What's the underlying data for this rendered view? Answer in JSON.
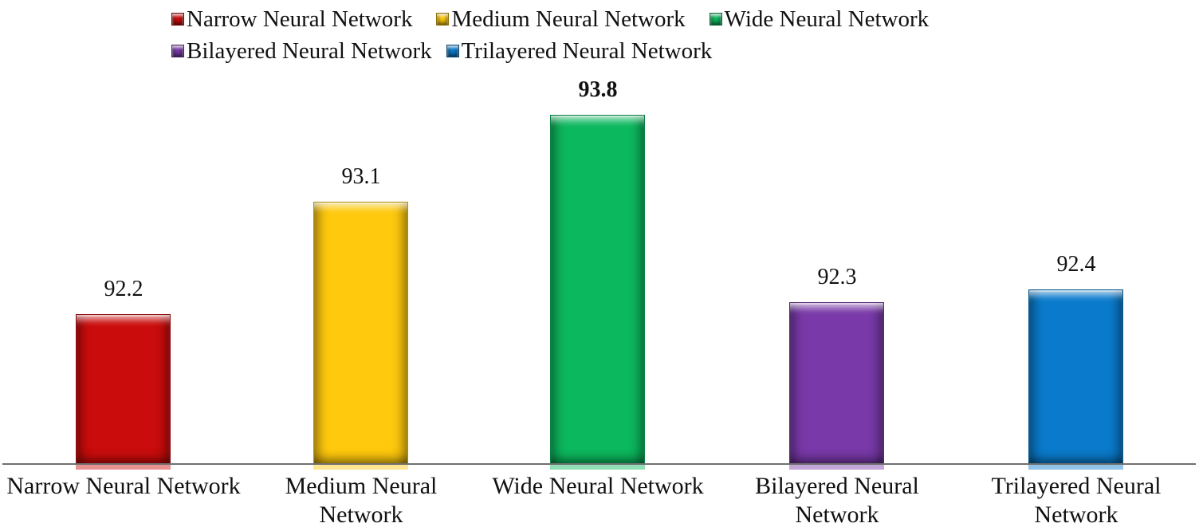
{
  "chart_data": {
    "type": "bar",
    "title": "",
    "xlabel": "",
    "ylabel": "",
    "categories": [
      "Narrow Neural Network",
      "Medium Neural Network",
      "Wide Neural Network",
      "Bilayered Neural Network",
      "Trilayered Neural Network"
    ],
    "category_lines": [
      [
        "Narrow Neural Network",
        ""
      ],
      [
        "Medium Neural",
        "Network"
      ],
      [
        "Wide Neural Network",
        ""
      ],
      [
        "Bilayered Neural",
        "Network"
      ],
      [
        "Trilayered Neural",
        "Network"
      ]
    ],
    "values": [
      92.2,
      93.1,
      93.8,
      92.3,
      92.4
    ],
    "data_labels": [
      "92.2",
      "93.1",
      "93.8",
      "92.3",
      "92.4"
    ],
    "emphasized_label_index": 2,
    "colors": [
      "#cb0c0c",
      "#ffc90d",
      "#0cb85e",
      "#7939a9",
      "#0a7bcc"
    ],
    "ylim": [
      91,
      94.3
    ],
    "grid": false,
    "legend_position": "top-left",
    "legend_rows": [
      [
        "Narrow Neural Network",
        "Medium Neural Network",
        "Wide Neural Network"
      ],
      [
        "Bilayered Neural Network",
        "Trilayered Neural Network"
      ]
    ],
    "axis_line_color": "#707070"
  }
}
